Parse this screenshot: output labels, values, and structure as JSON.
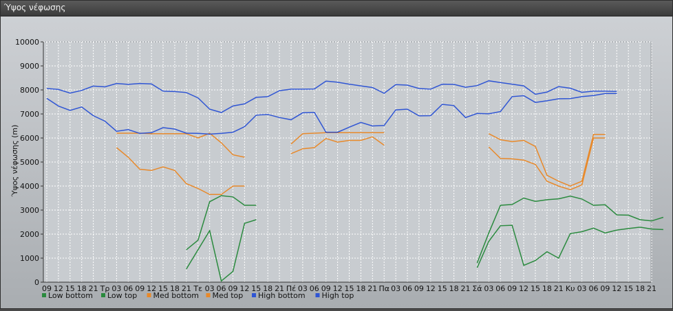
{
  "window": {
    "title": "Ύψος νέφωσης"
  },
  "chart_data": {
    "type": "line",
    "ylabel": "Ύψος νέφωσης (m)",
    "xlabel": "",
    "ylim": [
      0,
      10000
    ],
    "y_ticks": [
      0,
      1000,
      2000,
      3000,
      4000,
      5000,
      6000,
      7000,
      8000,
      9000,
      10000
    ],
    "grid": true,
    "legend_position": "bottom",
    "x_tick_labels": [
      "09",
      "12",
      "15",
      "18",
      "21",
      "Τρ",
      "03",
      "06",
      "09",
      "12",
      "15",
      "18",
      "21",
      "Τε",
      "03",
      "06",
      "09",
      "12",
      "15",
      "18",
      "21",
      "Πέ",
      "03",
      "06",
      "09",
      "12",
      "15",
      "18",
      "21",
      "Πα",
      "03",
      "06",
      "09",
      "12",
      "15",
      "18",
      "21",
      "Σά",
      "03",
      "06",
      "09",
      "12",
      "15",
      "18",
      "21",
      "Κυ",
      "03",
      "06",
      "09",
      "12",
      "15",
      "18",
      "21"
    ],
    "series": [
      {
        "name": "Low bottom",
        "color": "#2a8a3e",
        "values": [
          null,
          null,
          null,
          null,
          null,
          null,
          null,
          null,
          null,
          null,
          null,
          null,
          null,
          null,
          null,
          null,
          null,
          null,
          null,
          null,
          null,
          null,
          null,
          null,
          null,
          null,
          null,
          null,
          null,
          null,
          null,
          null,
          null,
          null,
          null,
          null,
          null,
          null,
          null,
          null,
          null,
          null,
          null,
          null,
          null,
          null,
          null,
          null,
          null,
          null,
          null,
          null,
          null,
          null,
          null,
          null,
          null,
          null,
          null,
          null,
          null,
          null,
          null,
          null,
          null,
          null,
          null,
          null,
          null,
          null,
          null,
          null,
          null,
          null,
          null,
          null,
          null,
          null,
          null,
          null,
          null,
          null,
          null,
          null,
          null,
          null,
          null,
          null,
          null,
          null,
          null,
          null,
          null,
          null,
          null,
          null,
          null,
          null,
          null,
          null,
          null,
          null,
          null,
          null,
          null,
          null
        ]
      },
      {
        "name": "Low top",
        "color": "#2a8a3e",
        "values": []
      },
      {
        "name": "Med bottom",
        "color": "#e8892a",
        "values": []
      },
      {
        "name": "Med top",
        "color": "#e8892a",
        "values": []
      },
      {
        "name": "High bottom",
        "color": "#2f55d4",
        "values": []
      },
      {
        "name": "High top",
        "color": "#2f55d4",
        "values": []
      }
    ],
    "lines": {
      "Low bottom": [
        [
          12,
          1350
        ],
        [
          13,
          1750
        ],
        [
          14,
          3350
        ],
        [
          15,
          3600
        ],
        [
          16,
          3550
        ],
        [
          17,
          3200
        ],
        [
          18,
          3200
        ],
        [
          37,
          800
        ],
        [
          38,
          2050
        ],
        [
          39,
          3200
        ],
        [
          40,
          3230
        ],
        [
          41,
          3500
        ],
        [
          42,
          3360
        ],
        [
          43,
          3430
        ],
        [
          44,
          3470
        ],
        [
          45,
          3580
        ],
        [
          46,
          3460
        ],
        [
          47,
          3200
        ],
        [
          48,
          3220
        ],
        [
          49,
          2800
        ],
        [
          50,
          2790
        ],
        [
          51,
          2600
        ],
        [
          52,
          2550
        ],
        [
          53,
          2700
        ]
      ],
      "Low top": [
        [
          12,
          550
        ],
        [
          14,
          2150
        ],
        [
          15,
          50
        ],
        [
          16,
          450
        ],
        [
          17,
          2450
        ],
        [
          18,
          2600
        ],
        [
          37,
          600
        ],
        [
          38,
          1700
        ],
        [
          39,
          2350
        ],
        [
          40,
          2370
        ],
        [
          41,
          700
        ],
        [
          42,
          900
        ],
        [
          43,
          1270
        ],
        [
          44,
          1000
        ],
        [
          45,
          2020
        ],
        [
          46,
          2100
        ],
        [
          47,
          2250
        ],
        [
          48,
          2050
        ],
        [
          49,
          2170
        ],
        [
          50,
          2230
        ],
        [
          51,
          2290
        ],
        [
          52,
          2210
        ],
        [
          53,
          2190
        ]
      ],
      "Med bottom": [
        [
          6,
          5600
        ],
        [
          7,
          5200
        ],
        [
          8,
          4700
        ],
        [
          9,
          4650
        ],
        [
          10,
          4800
        ],
        [
          11,
          4650
        ],
        [
          12,
          4100
        ],
        [
          13,
          3900
        ],
        [
          14,
          3650
        ],
        [
          15,
          3650
        ],
        [
          16,
          4000
        ],
        [
          17,
          4000
        ],
        [
          21,
          5350
        ],
        [
          22,
          5550
        ],
        [
          23,
          5600
        ],
        [
          24,
          5980
        ],
        [
          25,
          5830
        ],
        [
          26,
          5900
        ],
        [
          27,
          5900
        ],
        [
          28,
          6050
        ],
        [
          29,
          5700
        ],
        [
          38,
          5630
        ],
        [
          39,
          5150
        ],
        [
          40,
          5130
        ],
        [
          41,
          5080
        ],
        [
          42,
          4900
        ],
        [
          43,
          4200
        ],
        [
          44,
          4000
        ],
        [
          45,
          3850
        ],
        [
          46,
          4050
        ],
        [
          47,
          6000
        ],
        [
          48,
          6000
        ]
      ],
      "Med top": [
        [
          6,
          6200
        ],
        [
          7,
          6200
        ],
        [
          8,
          6200
        ],
        [
          9,
          6180
        ],
        [
          10,
          6180
        ],
        [
          11,
          6180
        ],
        [
          12,
          6180
        ],
        [
          13,
          6000
        ],
        [
          14,
          6200
        ],
        [
          15,
          5800
        ],
        [
          16,
          5300
        ],
        [
          17,
          5200
        ],
        [
          21,
          5750
        ],
        [
          22,
          6180
        ],
        [
          23,
          6200
        ],
        [
          24,
          6220
        ],
        [
          25,
          6220
        ],
        [
          26,
          6220
        ],
        [
          27,
          6220
        ],
        [
          28,
          6220
        ],
        [
          29,
          6220
        ],
        [
          38,
          6180
        ],
        [
          39,
          5930
        ],
        [
          40,
          5850
        ],
        [
          41,
          5900
        ],
        [
          42,
          5650
        ],
        [
          43,
          4450
        ],
        [
          44,
          4200
        ],
        [
          45,
          4000
        ],
        [
          46,
          4200
        ],
        [
          47,
          6150
        ],
        [
          48,
          6150
        ]
      ],
      "High bottom": [
        [
          0,
          7650
        ],
        [
          1,
          7330
        ],
        [
          2,
          7150
        ],
        [
          3,
          7290
        ],
        [
          4,
          6930
        ],
        [
          5,
          6700
        ],
        [
          6,
          6280
        ],
        [
          7,
          6350
        ],
        [
          8,
          6190
        ],
        [
          9,
          6220
        ],
        [
          10,
          6430
        ],
        [
          11,
          6370
        ],
        [
          12,
          6200
        ],
        [
          13,
          6190
        ],
        [
          14,
          6160
        ],
        [
          15,
          6190
        ],
        [
          16,
          6240
        ],
        [
          17,
          6470
        ],
        [
          18,
          6950
        ],
        [
          19,
          6980
        ],
        [
          20,
          6850
        ],
        [
          21,
          6760
        ],
        [
          22,
          7050
        ],
        [
          23,
          7070
        ],
        [
          24,
          6240
        ],
        [
          25,
          6240
        ],
        [
          26,
          6450
        ],
        [
          27,
          6650
        ],
        [
          28,
          6500
        ],
        [
          29,
          6520
        ],
        [
          30,
          7170
        ],
        [
          31,
          7200
        ],
        [
          32,
          6920
        ],
        [
          33,
          6930
        ],
        [
          34,
          7400
        ],
        [
          35,
          7350
        ],
        [
          36,
          6850
        ],
        [
          37,
          7020
        ],
        [
          38,
          7010
        ],
        [
          39,
          7100
        ],
        [
          40,
          7720
        ],
        [
          41,
          7760
        ],
        [
          42,
          7480
        ],
        [
          43,
          7550
        ],
        [
          44,
          7630
        ],
        [
          45,
          7640
        ],
        [
          46,
          7720
        ],
        [
          47,
          7770
        ],
        [
          48,
          7850
        ],
        [
          49,
          7850
        ]
      ],
      "High top": [
        [
          0,
          8060
        ],
        [
          1,
          8020
        ],
        [
          2,
          7870
        ],
        [
          3,
          7980
        ],
        [
          4,
          8160
        ],
        [
          5,
          8130
        ],
        [
          6,
          8270
        ],
        [
          7,
          8230
        ],
        [
          8,
          8270
        ],
        [
          9,
          8250
        ],
        [
          10,
          7950
        ],
        [
          11,
          7930
        ],
        [
          12,
          7890
        ],
        [
          13,
          7670
        ],
        [
          14,
          7200
        ],
        [
          15,
          7060
        ],
        [
          16,
          7330
        ],
        [
          17,
          7420
        ],
        [
          18,
          7690
        ],
        [
          19,
          7720
        ],
        [
          20,
          7970
        ],
        [
          21,
          8030
        ],
        [
          22,
          8030
        ],
        [
          23,
          8040
        ],
        [
          24,
          8370
        ],
        [
          25,
          8320
        ],
        [
          26,
          8240
        ],
        [
          27,
          8170
        ],
        [
          28,
          8100
        ],
        [
          29,
          7860
        ],
        [
          30,
          8220
        ],
        [
          31,
          8200
        ],
        [
          32,
          8060
        ],
        [
          33,
          8030
        ],
        [
          34,
          8240
        ],
        [
          35,
          8230
        ],
        [
          36,
          8110
        ],
        [
          37,
          8180
        ],
        [
          38,
          8380
        ],
        [
          39,
          8310
        ],
        [
          40,
          8240
        ],
        [
          41,
          8170
        ],
        [
          42,
          7820
        ],
        [
          43,
          7910
        ],
        [
          44,
          8140
        ],
        [
          45,
          8070
        ],
        [
          46,
          7900
        ],
        [
          47,
          7950
        ],
        [
          48,
          7950
        ],
        [
          49,
          7940
        ]
      ]
    }
  }
}
